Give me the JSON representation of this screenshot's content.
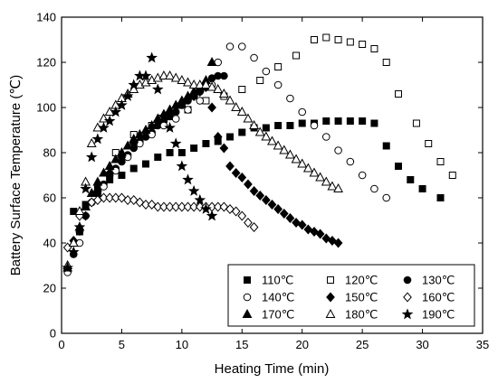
{
  "chart_data": {
    "type": "scatter",
    "xlabel": "Heating Time (min)",
    "ylabel": "Battery Surface Temperature (℃)",
    "xlim": [
      0,
      35
    ],
    "ylim": [
      0,
      140
    ],
    "xticks": [
      "0",
      "5",
      "10",
      "15",
      "20",
      "25",
      "30",
      "35"
    ],
    "yticks": [
      "0",
      "20",
      "40",
      "60",
      "80",
      "100",
      "120",
      "140"
    ],
    "grid": false,
    "legend_position": "bottom-right",
    "series": [
      {
        "name": "110℃",
        "marker": "square-filled",
        "x": [
          1.0,
          2.0,
          3.0,
          4.0,
          5.0,
          6.0,
          7.0,
          8.0,
          9.0,
          10.0,
          11.0,
          12.0,
          13.0,
          14.0,
          15.0,
          16.0,
          17.0,
          18.0,
          19.0,
          20.0,
          21.0,
          22.0,
          23.0,
          24.0,
          25.0,
          26.0,
          27.0,
          28.0,
          29.0,
          30.0,
          31.5
        ],
        "y": [
          54,
          57,
          64,
          68,
          70,
          73,
          75,
          78,
          80,
          80,
          82,
          84,
          85,
          87,
          89,
          91,
          91,
          92,
          92,
          93,
          93,
          94,
          94,
          94,
          94,
          93,
          83,
          74,
          68,
          64,
          60
        ]
      },
      {
        "name": "120℃",
        "marker": "square-open",
        "x": [
          1.5,
          3.0,
          4.5,
          6.0,
          7.5,
          9.0,
          10.5,
          12.0,
          13.5,
          15.0,
          16.5,
          18.0,
          19.5,
          21.0,
          22.0,
          23.0,
          24.0,
          25.0,
          26.0,
          27.0,
          28.0,
          29.5,
          30.5,
          31.5,
          32.5
        ],
        "y": [
          45,
          62,
          80,
          88,
          92,
          96,
          99,
          103,
          105,
          108,
          112,
          118,
          123,
          130,
          131,
          130,
          129,
          128,
          126,
          120,
          106,
          93,
          84,
          76,
          70
        ]
      },
      {
        "name": "130℃",
        "marker": "circle-filled",
        "x": [
          0.5,
          1.0,
          1.5,
          2.0,
          2.5,
          3.0,
          3.5,
          4.0,
          4.5,
          5.0,
          5.5,
          6.0,
          6.5,
          7.0,
          7.5,
          8.0,
          8.5,
          9.0,
          9.5,
          10.0,
          10.5,
          11.0,
          11.5,
          12.0,
          12.5,
          13.0,
          13.5
        ],
        "y": [
          28,
          35,
          45,
          52,
          58,
          62,
          66,
          70,
          73,
          76,
          79,
          82,
          85,
          87,
          89,
          92,
          94,
          96,
          98,
          101,
          103,
          105,
          107,
          110,
          113,
          114,
          114
        ]
      },
      {
        "name": "140℃",
        "marker": "circle-open",
        "x": [
          0.5,
          1.5,
          2.5,
          3.5,
          4.5,
          5.5,
          6.5,
          7.5,
          8.5,
          9.5,
          10.5,
          11.5,
          12.5,
          13.0,
          14.0,
          15.0,
          16.0,
          17.0,
          18.0,
          19.0,
          20.0,
          21.0,
          22.0,
          23.0,
          24.0,
          25.0,
          26.0,
          27.0
        ],
        "y": [
          27,
          40,
          58,
          65,
          72,
          78,
          84,
          88,
          92,
          95,
          99,
          103,
          110,
          120,
          127,
          127,
          122,
          116,
          110,
          104,
          98,
          92,
          87,
          81,
          76,
          70,
          64,
          60
        ]
      },
      {
        "name": "150℃",
        "marker": "diamond-filled",
        "x": [
          1.0,
          2.0,
          3.0,
          4.0,
          5.0,
          6.0,
          7.0,
          8.0,
          9.0,
          10.0,
          11.0,
          11.5,
          12.0,
          12.5,
          13.0,
          13.5,
          14.0,
          14.5,
          15.0,
          15.5,
          16.0,
          16.5,
          17.0,
          17.5,
          18.0,
          18.5,
          19.0,
          19.5,
          20.0,
          20.5,
          21.0,
          21.5,
          22.0,
          22.5,
          23.0
        ],
        "y": [
          41,
          52,
          63,
          71,
          78,
          84,
          89,
          94,
          98,
          102,
          105,
          107,
          109,
          100,
          87,
          82,
          74,
          71,
          69,
          66,
          63,
          61,
          59,
          57,
          55,
          53,
          51,
          49,
          48,
          46,
          45,
          44,
          42,
          41,
          40
        ]
      },
      {
        "name": "160℃",
        "marker": "diamond-open",
        "x": [
          0.5,
          1.5,
          2.5,
          3.0,
          3.5,
          4.0,
          4.5,
          5.0,
          5.5,
          6.0,
          6.5,
          7.0,
          7.5,
          8.0,
          8.5,
          9.0,
          9.5,
          10.0,
          10.5,
          11.0,
          11.5,
          12.0,
          12.5,
          13.0,
          13.5,
          14.0,
          14.5,
          15.0,
          15.5,
          16.0
        ],
        "y": [
          38,
          52,
          58,
          59,
          60,
          60,
          60,
          60,
          59,
          59,
          58,
          57,
          57,
          56,
          56,
          56,
          56,
          56,
          56,
          56,
          56,
          56,
          56,
          56,
          56,
          55,
          54,
          52,
          49,
          47
        ]
      },
      {
        "name": "170℃",
        "marker": "triangle-filled",
        "x": [
          0.5,
          1.0,
          1.5,
          2.0,
          2.5,
          3.0,
          3.5,
          4.0,
          4.5,
          5.0,
          5.5,
          6.0,
          6.5,
          7.0,
          7.5,
          8.0,
          8.5,
          9.0,
          9.5,
          10.0,
          10.5,
          11.0,
          11.5,
          12.0,
          12.5
        ],
        "y": [
          29,
          40,
          47,
          56,
          62,
          67,
          71,
          74,
          77,
          80,
          83,
          86,
          88,
          90,
          92,
          95,
          97,
          99,
          101,
          103,
          105,
          107,
          109,
          112,
          120
        ]
      },
      {
        "name": "180℃",
        "marker": "triangle-open",
        "x": [
          0.5,
          1.0,
          1.5,
          2.0,
          2.5,
          3.0,
          3.5,
          4.0,
          4.5,
          5.0,
          5.5,
          6.0,
          6.5,
          7.0,
          7.5,
          8.0,
          8.5,
          9.0,
          9.5,
          10.0,
          10.5,
          11.0,
          11.5,
          12.0,
          12.5,
          13.0,
          13.5,
          14.0,
          14.5,
          15.0,
          15.5,
          16.0,
          16.5,
          17.0,
          17.5,
          18.0,
          18.5,
          19.0,
          19.5,
          20.0,
          20.5,
          21.0,
          21.5,
          22.0,
          22.5,
          23.0
        ],
        "y": [
          30,
          40,
          54,
          67,
          84,
          91,
          95,
          98,
          101,
          104,
          106,
          108,
          110,
          111,
          112,
          113,
          114,
          114,
          113,
          112,
          111,
          110,
          110,
          110,
          109,
          108,
          106,
          103,
          100,
          98,
          95,
          92,
          89,
          87,
          85,
          83,
          81,
          79,
          77,
          75,
          73,
          71,
          69,
          67,
          65,
          64
        ]
      },
      {
        "name": "190℃",
        "marker": "star-filled",
        "x": [
          0.5,
          1.0,
          1.5,
          2.0,
          2.5,
          3.0,
          3.5,
          4.0,
          4.5,
          5.0,
          5.5,
          6.0,
          6.5,
          7.0,
          7.5,
          8.0,
          8.5,
          9.0,
          9.5,
          10.0,
          10.5,
          11.0,
          11.5,
          12.0,
          12.5
        ],
        "y": [
          29,
          36,
          47,
          64,
          78,
          86,
          91,
          94,
          98,
          101,
          105,
          110,
          114,
          114,
          122,
          108,
          96,
          91,
          84,
          74,
          68,
          63,
          59,
          55,
          52
        ]
      }
    ]
  }
}
